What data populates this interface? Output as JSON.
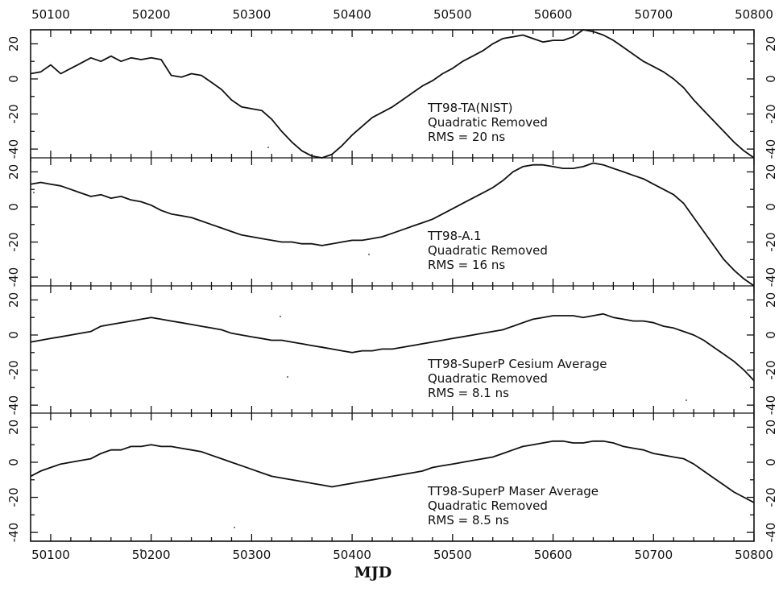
{
  "chart_data": {
    "type": "line",
    "xlabel": "MJD",
    "xlim": [
      50080,
      50800
    ],
    "x_ticks": [
      50100,
      50200,
      50300,
      50400,
      50500,
      50600,
      50700,
      50800
    ],
    "ylim": [
      -45,
      28
    ],
    "y_tick_labels": [
      "20",
      "0",
      "-20",
      "-40"
    ],
    "panels": [
      {
        "label": "TT98-TA(NIST)",
        "line2": "Quadratic Removed",
        "line3": "RMS = 20 ns",
        "series": [
          {
            "x": [
              50080,
              50090,
              50100,
              50110,
              50120,
              50130,
              50140,
              50150,
              50160,
              50170,
              50180,
              50190,
              50200,
              50210,
              50220,
              50230,
              50240,
              50250,
              50260,
              50270,
              50280,
              50290,
              50300,
              50310,
              50320,
              50330,
              50340,
              50350,
              50360,
              50370,
              50380,
              50390,
              50400,
              50410,
              50420,
              50430,
              50440,
              50450,
              50460,
              50470,
              50480,
              50490,
              50500,
              50510,
              50520,
              50530,
              50540,
              50550,
              50560,
              50570,
              50580,
              50590,
              50600,
              50610,
              50620,
              50630,
              50640,
              50650,
              50660,
              50670,
              50680,
              50690,
              50700,
              50710,
              50720,
              50730,
              50740,
              50750,
              50760,
              50770,
              50780,
              50790,
              50800
            ],
            "y": [
              3,
              4,
              8,
              3,
              6,
              9,
              12,
              10,
              13,
              10,
              12,
              11,
              12,
              11,
              2,
              1,
              3,
              2,
              -2,
              -6,
              -12,
              -16,
              -17,
              -18,
              -23,
              -30,
              -36,
              -41,
              -44,
              -45,
              -43,
              -38,
              -32,
              -27,
              -22,
              -19,
              -16,
              -12,
              -8,
              -4,
              -1,
              3,
              6,
              10,
              13,
              16,
              20,
              23,
              24,
              25,
              23,
              21,
              22,
              22,
              24,
              28,
              27,
              25,
              22,
              18,
              14,
              10,
              7,
              4,
              0,
              -5,
              -12,
              -18,
              -24,
              -30,
              -36,
              -41,
              -45
            ]
          }
        ]
      },
      {
        "label": "TT98-A.1",
        "line2": "Quadratic Removed",
        "line3": "RMS = 16 ns",
        "series": [
          {
            "x": [
              50080,
              50090,
              50100,
              50110,
              50120,
              50130,
              50140,
              50150,
              50160,
              50170,
              50180,
              50190,
              50200,
              50210,
              50220,
              50230,
              50240,
              50250,
              50260,
              50270,
              50280,
              50290,
              50300,
              50310,
              50320,
              50330,
              50340,
              50350,
              50360,
              50370,
              50380,
              50390,
              50400,
              50410,
              50420,
              50430,
              50440,
              50450,
              50460,
              50470,
              50480,
              50490,
              50500,
              50510,
              50520,
              50530,
              50540,
              50550,
              50560,
              50570,
              50580,
              50590,
              50600,
              50610,
              50620,
              50630,
              50640,
              50650,
              50660,
              50670,
              50680,
              50690,
              50700,
              50710,
              50720,
              50730,
              50740,
              50750,
              50760,
              50770,
              50780,
              50790,
              50800
            ],
            "y": [
              13,
              14,
              13,
              12,
              10,
              8,
              6,
              7,
              5,
              6,
              4,
              3,
              1,
              -2,
              -4,
              -5,
              -6,
              -8,
              -10,
              -12,
              -14,
              -16,
              -17,
              -18,
              -19,
              -20,
              -20,
              -21,
              -21,
              -22,
              -21,
              -20,
              -19,
              -19,
              -18,
              -17,
              -15,
              -13,
              -11,
              -9,
              -7,
              -4,
              -1,
              2,
              5,
              8,
              11,
              15,
              20,
              23,
              24,
              24,
              23,
              22,
              22,
              23,
              25,
              24,
              22,
              20,
              18,
              16,
              13,
              10,
              7,
              2,
              -6,
              -14,
              -22,
              -30,
              -36,
              -41,
              -45
            ]
          }
        ]
      },
      {
        "label": "TT98-SuperP Cesium Average",
        "line2": "Quadratic Removed",
        "line3": "RMS = 8.1 ns",
        "series": [
          {
            "x": [
              50080,
              50090,
              50100,
              50110,
              50120,
              50130,
              50140,
              50150,
              50160,
              50170,
              50180,
              50190,
              50200,
              50210,
              50220,
              50230,
              50240,
              50250,
              50260,
              50270,
              50280,
              50290,
              50300,
              50310,
              50320,
              50330,
              50340,
              50350,
              50360,
              50370,
              50380,
              50390,
              50400,
              50410,
              50420,
              50430,
              50440,
              50450,
              50460,
              50470,
              50480,
              50490,
              50500,
              50510,
              50520,
              50530,
              50540,
              50550,
              50560,
              50570,
              50580,
              50590,
              50600,
              50610,
              50620,
              50630,
              50640,
              50650,
              50660,
              50670,
              50680,
              50690,
              50700,
              50710,
              50720,
              50730,
              50740,
              50750,
              50760,
              50770,
              50780,
              50790,
              50800
            ],
            "y": [
              -4,
              -3,
              -2,
              -1,
              0,
              1,
              2,
              5,
              6,
              7,
              8,
              9,
              10,
              9,
              8,
              7,
              6,
              5,
              4,
              3,
              1,
              0,
              -1,
              -2,
              -3,
              -3,
              -4,
              -5,
              -6,
              -7,
              -8,
              -9,
              -10,
              -9,
              -9,
              -8,
              -8,
              -7,
              -6,
              -5,
              -4,
              -3,
              -2,
              -1,
              0,
              1,
              2,
              3,
              5,
              7,
              9,
              10,
              11,
              11,
              11,
              10,
              11,
              12,
              10,
              9,
              8,
              8,
              7,
              5,
              4,
              2,
              0,
              -3,
              -7,
              -11,
              -15,
              -20,
              -26
            ]
          }
        ]
      },
      {
        "label": "TT98-SuperP Maser Average",
        "line2": "Quadratic Removed",
        "line3": "RMS = 8.5 ns",
        "series": [
          {
            "x": [
              50080,
              50090,
              50100,
              50110,
              50120,
              50130,
              50140,
              50150,
              50160,
              50170,
              50180,
              50190,
              50200,
              50210,
              50220,
              50230,
              50240,
              50250,
              50260,
              50270,
              50280,
              50290,
              50300,
              50310,
              50320,
              50330,
              50340,
              50350,
              50360,
              50370,
              50380,
              50390,
              50400,
              50410,
              50420,
              50430,
              50440,
              50450,
              50460,
              50470,
              50480,
              50490,
              50500,
              50510,
              50520,
              50530,
              50540,
              50550,
              50560,
              50570,
              50580,
              50590,
              50600,
              50610,
              50620,
              50630,
              50640,
              50650,
              50660,
              50670,
              50680,
              50690,
              50700,
              50710,
              50720,
              50730,
              50740,
              50750,
              50760,
              50770,
              50780,
              50790,
              50800
            ],
            "y": [
              -8,
              -5,
              -3,
              -1,
              0,
              1,
              2,
              5,
              7,
              7,
              9,
              9,
              10,
              9,
              9,
              8,
              7,
              6,
              4,
              2,
              0,
              -2,
              -4,
              -6,
              -8,
              -9,
              -10,
              -11,
              -12,
              -13,
              -14,
              -13,
              -12,
              -11,
              -10,
              -9,
              -8,
              -7,
              -6,
              -5,
              -3,
              -2,
              -1,
              0,
              1,
              2,
              3,
              5,
              7,
              9,
              10,
              11,
              12,
              12,
              11,
              11,
              12,
              12,
              11,
              9,
              8,
              7,
              5,
              4,
              3,
              2,
              -1,
              -5,
              -9,
              -13,
              -17,
              -20,
              -23
            ]
          }
        ]
      }
    ]
  }
}
